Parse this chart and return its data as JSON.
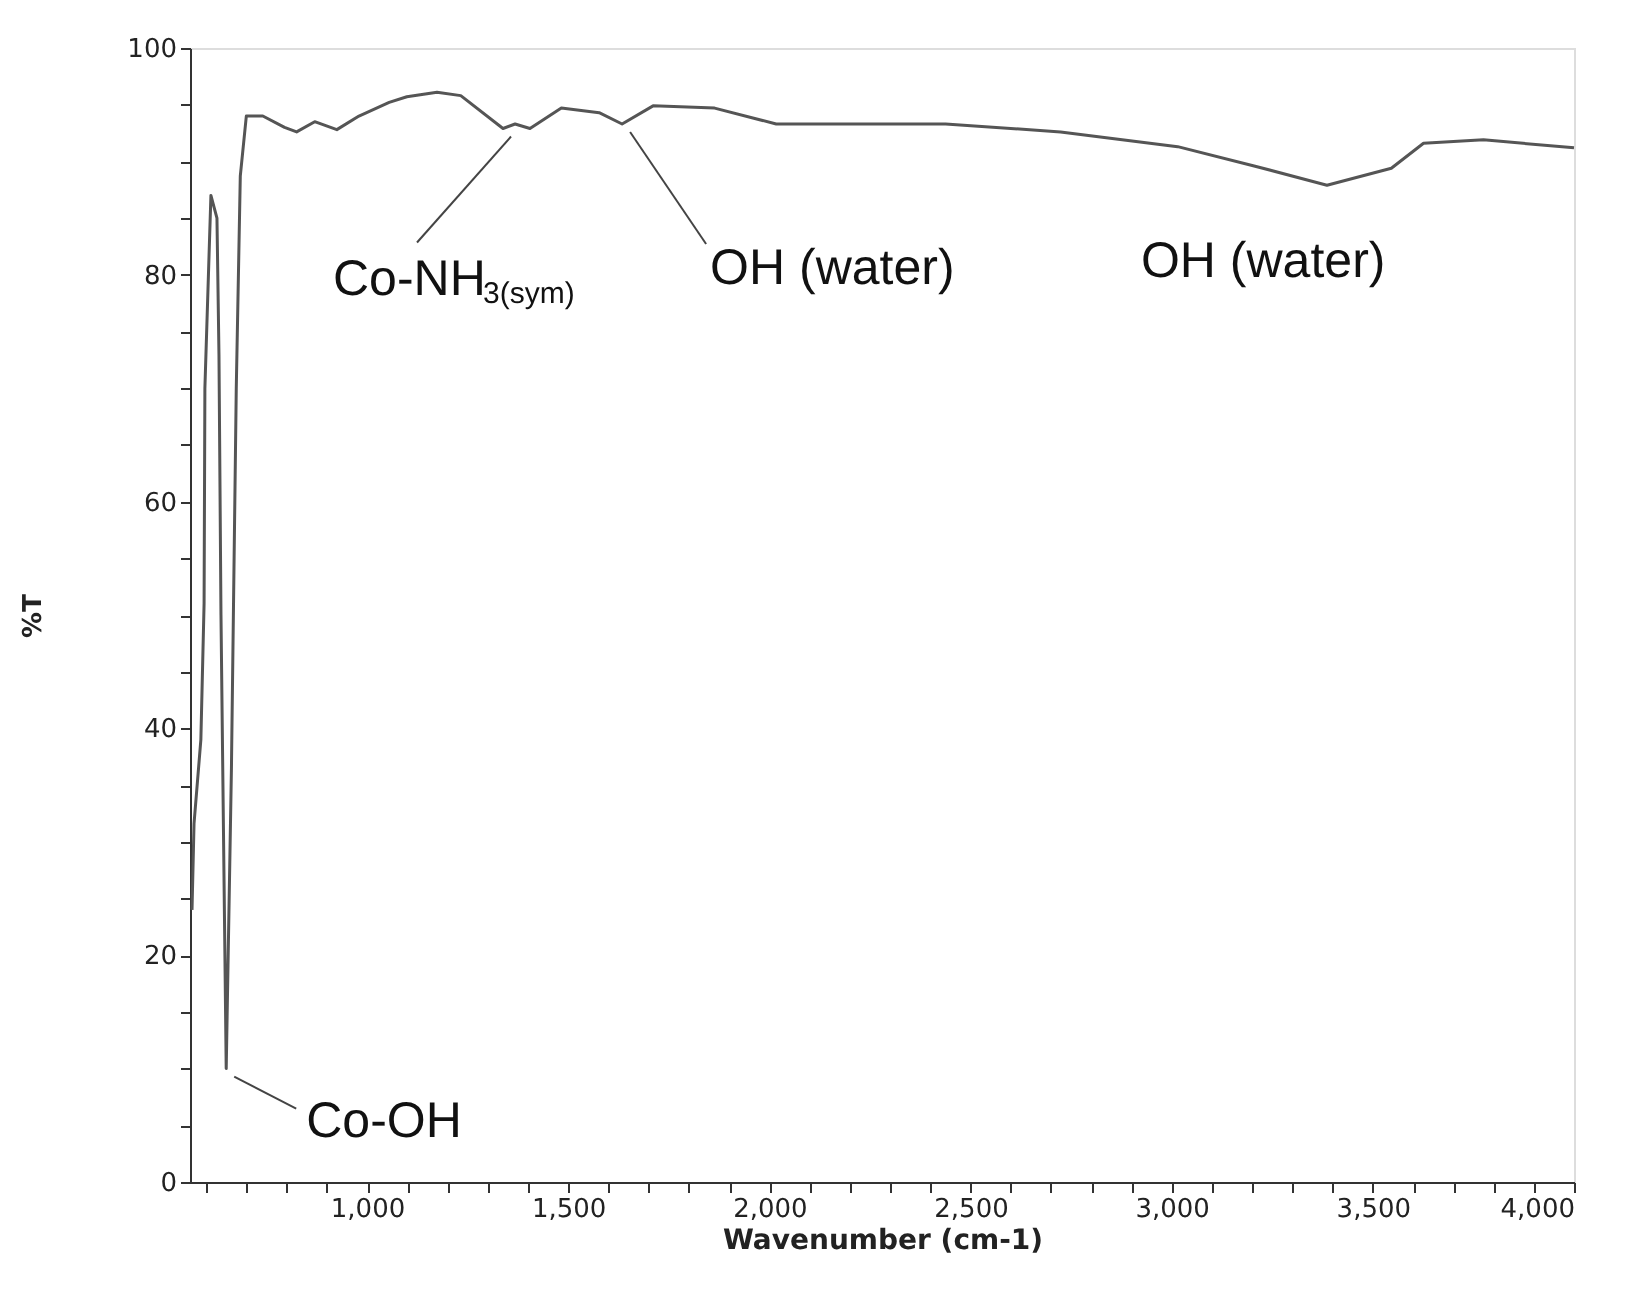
{
  "chart_data": {
    "type": "line",
    "xlabel": "Wavenumber (cm-1)",
    "ylabel": "%T",
    "xlim": [
      560,
      4000
    ],
    "ylim": [
      0,
      100
    ],
    "xticks": [
      {
        "value": 600,
        "label": null
      },
      {
        "value": 700,
        "label": null
      },
      {
        "value": 800,
        "label": null
      },
      {
        "value": 900,
        "label": null
      },
      {
        "value": 1000,
        "label": "1,000"
      },
      {
        "value": 1100,
        "label": null
      },
      {
        "value": 1200,
        "label": null
      },
      {
        "value": 1300,
        "label": null
      },
      {
        "value": 1400,
        "label": null
      },
      {
        "value": 1500,
        "label": "1,500"
      },
      {
        "value": 1600,
        "label": null
      },
      {
        "value": 1700,
        "label": null
      },
      {
        "value": 1800,
        "label": null
      },
      {
        "value": 1900,
        "label": null
      },
      {
        "value": 2000,
        "label": "2,000"
      },
      {
        "value": 2100,
        "label": null
      },
      {
        "value": 2200,
        "label": null
      },
      {
        "value": 2300,
        "label": null
      },
      {
        "value": 2400,
        "label": null
      },
      {
        "value": 2500,
        "label": "2,500"
      },
      {
        "value": 2600,
        "label": null
      },
      {
        "value": 2700,
        "label": null
      },
      {
        "value": 2800,
        "label": null
      },
      {
        "value": 2900,
        "label": null
      },
      {
        "value": 3000,
        "label": "3,000"
      },
      {
        "value": 3100,
        "label": null
      },
      {
        "value": 3200,
        "label": null
      },
      {
        "value": 3300,
        "label": null
      },
      {
        "value": 3400,
        "label": null
      },
      {
        "value": 3500,
        "label": "3,500"
      },
      {
        "value": 3600,
        "label": null
      },
      {
        "value": 3700,
        "label": null
      },
      {
        "value": 3800,
        "label": null
      },
      {
        "value": 3900,
        "label": null
      },
      {
        "value": 4000,
        "label": "4,000"
      }
    ],
    "yticks": [
      0,
      {
        "value": 5,
        "label": null
      },
      {
        "value": 10,
        "label": null
      },
      {
        "value": 15,
        "label": null
      },
      20,
      {
        "value": 25,
        "label": null
      },
      {
        "value": 30,
        "label": null
      },
      {
        "value": 35,
        "label": null
      },
      40,
      {
        "value": 45,
        "label": null
      },
      {
        "value": 50,
        "label": null
      },
      {
        "value": 55,
        "label": null
      },
      60,
      {
        "value": 65,
        "label": null
      },
      {
        "value": 70,
        "label": null
      },
      {
        "value": 75,
        "label": null
      },
      80,
      {
        "value": 85,
        "label": null
      },
      {
        "value": 90,
        "label": null
      },
      {
        "value": 95,
        "label": null
      },
      100
    ],
    "grid": false,
    "marker": "none",
    "line_style": "solid",
    "series": [
      {
        "color": "#555555",
        "x": [
          565,
          570,
          587,
          595,
          597,
          612,
          627,
          632,
          637,
          650,
          663,
          675,
          685,
          700,
          741,
          795,
          825,
          870,
          925,
          980,
          1055,
          1099,
          1174,
          1233,
          1338,
          1368,
          1405,
          1483,
          1577,
          1634,
          1711,
          1864,
          2017,
          2438,
          2724,
          3015,
          3205,
          3386,
          3546,
          3626,
          3775,
          4000
        ],
        "values": [
          24,
          31.6,
          39,
          51,
          70,
          87,
          85,
          73,
          50,
          10,
          36.5,
          70,
          88.7,
          94,
          94,
          93,
          92.6,
          93.5,
          92.8,
          94,
          95.2,
          95.7,
          96.1,
          95.8,
          92.9,
          93.3,
          92.9,
          94.7,
          94.3,
          93.3,
          94.9,
          94.7,
          93.3,
          93.3,
          92.6,
          91.3,
          89.6,
          87.9,
          89.4,
          91.6,
          91.9,
          91.2
        ]
      }
    ],
    "annotations": [
      {
        "text": "Co-NH$_{3(sym)}$",
        "x": 1338,
        "y": 92.9
      },
      {
        "text": "OH (water)",
        "x": 1634,
        "y": 93.3
      },
      {
        "text": "OH (water)",
        "x": 3386,
        "y": 87.9
      },
      {
        "text": "Co-OH",
        "x": 650,
        "y": 10
      }
    ]
  }
}
